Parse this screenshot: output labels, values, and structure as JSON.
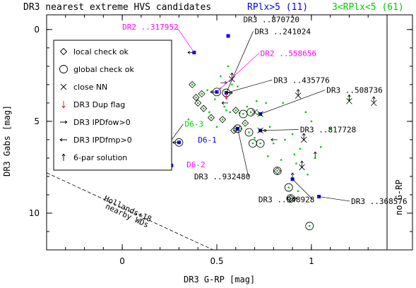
{
  "chart_data": {
    "type": "scatter",
    "title": "DR3 nearest extreme HVS candidates",
    "title_groups": [
      {
        "text": "RPlx>5 (11)",
        "color": "#0000ff"
      },
      {
        "text": "3<RPlx<5 (61)",
        "color": "#00cc00"
      }
    ],
    "xlabel": "DR3 G-RP [mag]",
    "ylabel": "DR3 Gabs [mag]",
    "xlim": [
      -0.4,
      1.4
    ],
    "ylim": [
      12,
      -0.8
    ],
    "y_inverted": true,
    "x_ticks": [
      "0",
      "0.5",
      "1"
    ],
    "y_ticks": [
      "0",
      "5",
      "10"
    ],
    "right_panel_label": "no G-RP",
    "guide_line": {
      "label_lines": [
        "Hollands+18",
        "nearby WDs"
      ],
      "points": [
        {
          "x": -0.4,
          "y": 7.8
        },
        {
          "x": 0.48,
          "y": 12.0
        }
      ]
    },
    "legend": {
      "position": "upper-left",
      "entries": [
        {
          "symbol": "diamond",
          "text": "local check ok",
          "color": "#000000"
        },
        {
          "symbol": "circle",
          "text": "global check ok",
          "color": "#000000"
        },
        {
          "symbol": "cross",
          "text": "close NN",
          "color": "#000000"
        },
        {
          "symbol": "arrow-down",
          "text": "DR3 Dup flag",
          "color": "#ff0000"
        },
        {
          "symbol": "arrow-right",
          "text": "DR3 IPDfow>0",
          "color": "#000000"
        },
        {
          "symbol": "arrow-left",
          "text": "DR3 IPDfmp>0",
          "color": "#000000"
        },
        {
          "symbol": "arrow-up",
          "text": "6-par solution",
          "color": "#000000"
        }
      ]
    },
    "series": [
      {
        "name": "RPlx>5 (11)",
        "color": "#0000ff",
        "points": [
          {
            "x": 0.38,
            "y": 1.25
          },
          {
            "x": 0.56,
            "y": 0.35
          },
          {
            "x": 0.55,
            "y": 3.45
          },
          {
            "x": 0.5,
            "y": 3.4
          },
          {
            "x": 0.73,
            "y": 4.6
          },
          {
            "x": 0.61,
            "y": 5.4
          },
          {
            "x": 0.73,
            "y": 5.5
          },
          {
            "x": 0.3,
            "y": 6.15
          },
          {
            "x": 0.26,
            "y": 7.4
          },
          {
            "x": 0.9,
            "y": 8.15
          },
          {
            "x": 1.04,
            "y": 9.1
          }
        ]
      },
      {
        "name": "3<RPlx<5 (61)",
        "color": "#00cc00",
        "points": [
          {
            "x": 0.24,
            "y": 6.3
          },
          {
            "x": 0.37,
            "y": 3.0
          },
          {
            "x": 0.39,
            "y": 3.7
          },
          {
            "x": 0.4,
            "y": 4.0
          },
          {
            "x": 0.42,
            "y": 3.5
          },
          {
            "x": 0.45,
            "y": 3.3
          },
          {
            "x": 0.43,
            "y": 4.3
          },
          {
            "x": 0.46,
            "y": 4.5
          },
          {
            "x": 0.47,
            "y": 4.8
          },
          {
            "x": 0.49,
            "y": 3.8
          },
          {
            "x": 0.5,
            "y": 5.3
          },
          {
            "x": 0.52,
            "y": 3.2
          },
          {
            "x": 0.52,
            "y": 2.55
          },
          {
            "x": 0.53,
            "y": 4.9
          },
          {
            "x": 0.54,
            "y": 4.2
          },
          {
            "x": 0.55,
            "y": 4.4
          },
          {
            "x": 0.56,
            "y": 2.0
          },
          {
            "x": 0.57,
            "y": 4.5
          },
          {
            "x": 0.58,
            "y": 3.0
          },
          {
            "x": 0.59,
            "y": 5.5
          },
          {
            "x": 0.6,
            "y": 4.4
          },
          {
            "x": 0.61,
            "y": 3.1
          },
          {
            "x": 0.62,
            "y": 4.55
          },
          {
            "x": 0.63,
            "y": 5.4
          },
          {
            "x": 0.64,
            "y": 4.6
          },
          {
            "x": 0.65,
            "y": 5.1
          },
          {
            "x": 0.66,
            "y": 4.2
          },
          {
            "x": 0.67,
            "y": 5.6
          },
          {
            "x": 0.68,
            "y": 4.5
          },
          {
            "x": 0.69,
            "y": 6.2
          },
          {
            "x": 0.7,
            "y": 5.9
          },
          {
            "x": 0.71,
            "y": 3.9
          },
          {
            "x": 0.72,
            "y": 4.6
          },
          {
            "x": 0.73,
            "y": 6.2
          },
          {
            "x": 0.75,
            "y": 5.5
          },
          {
            "x": 0.76,
            "y": 4.0
          },
          {
            "x": 0.77,
            "y": 6.9
          },
          {
            "x": 0.78,
            "y": 5.3
          },
          {
            "x": 0.8,
            "y": 6.2
          },
          {
            "x": 0.82,
            "y": 7.7
          },
          {
            "x": 0.84,
            "y": 7.1
          },
          {
            "x": 0.85,
            "y": 4.0
          },
          {
            "x": 0.86,
            "y": 6.0
          },
          {
            "x": 0.88,
            "y": 8.6
          },
          {
            "x": 0.89,
            "y": 9.2
          },
          {
            "x": 0.9,
            "y": 5.7
          },
          {
            "x": 0.91,
            "y": 6.8
          },
          {
            "x": 0.92,
            "y": 7.3
          },
          {
            "x": 0.93,
            "y": 8.8
          },
          {
            "x": 0.94,
            "y": 6.5
          },
          {
            "x": 0.95,
            "y": 7.5
          },
          {
            "x": 0.96,
            "y": 6.0
          },
          {
            "x": 0.97,
            "y": 4.5
          },
          {
            "x": 0.98,
            "y": 7.9
          },
          {
            "x": 0.99,
            "y": 10.7
          },
          {
            "x": 1.0,
            "y": 5.0
          },
          {
            "x": 1.02,
            "y": 7.0
          },
          {
            "x": 1.05,
            "y": 6.4
          },
          {
            "x": 1.1,
            "y": 5.4
          },
          {
            "x": 1.2,
            "y": 3.8
          },
          {
            "x": 0.35,
            "y": 4.9
          }
        ]
      }
    ],
    "markers": [
      {
        "symbol": "diamond",
        "x": 0.37,
        "y": 3.0
      },
      {
        "symbol": "diamond",
        "x": 0.39,
        "y": 3.7
      },
      {
        "symbol": "diamond",
        "x": 0.42,
        "y": 3.5
      },
      {
        "symbol": "diamond",
        "x": 0.4,
        "y": 4.0
      },
      {
        "symbol": "diamond",
        "x": 0.43,
        "y": 4.3
      },
      {
        "symbol": "diamond",
        "x": 0.47,
        "y": 4.8
      },
      {
        "symbol": "diamond",
        "x": 0.53,
        "y": 4.9
      },
      {
        "symbol": "diamond",
        "x": 0.59,
        "y": 5.5
      },
      {
        "symbol": "diamond",
        "x": 0.24,
        "y": 6.3
      },
      {
        "symbol": "diamond",
        "x": 0.82,
        "y": 7.7
      },
      {
        "symbol": "diamond",
        "x": 0.89,
        "y": 9.2
      },
      {
        "symbol": "diamond",
        "x": 0.65,
        "y": 5.1
      },
      {
        "symbol": "diamond",
        "x": 0.6,
        "y": 4.4
      },
      {
        "symbol": "circle",
        "x": 0.24,
        "y": 6.3
      },
      {
        "symbol": "circle",
        "x": 0.3,
        "y": 6.15
      },
      {
        "symbol": "circle",
        "x": 0.55,
        "y": 3.45
      },
      {
        "symbol": "circle",
        "x": 0.5,
        "y": 3.4
      },
      {
        "symbol": "circle",
        "x": 0.61,
        "y": 5.4
      },
      {
        "symbol": "circle",
        "x": 0.64,
        "y": 4.6
      },
      {
        "symbol": "circle",
        "x": 0.67,
        "y": 5.6
      },
      {
        "symbol": "circle",
        "x": 0.69,
        "y": 6.2
      },
      {
        "symbol": "circle",
        "x": 0.73,
        "y": 6.2
      },
      {
        "symbol": "circle",
        "x": 0.82,
        "y": 7.7
      },
      {
        "symbol": "circle",
        "x": 0.88,
        "y": 8.6
      },
      {
        "symbol": "circle",
        "x": 0.89,
        "y": 9.2
      },
      {
        "symbol": "circle",
        "x": 0.99,
        "y": 10.7
      },
      {
        "symbol": "circle",
        "x": 0.68,
        "y": 4.5
      },
      {
        "symbol": "cross",
        "x": 0.58,
        "y": 2.7
      },
      {
        "symbol": "cross",
        "x": 0.7,
        "y": 4.5
      },
      {
        "symbol": "cross",
        "x": 0.73,
        "y": 4.6
      },
      {
        "symbol": "cross",
        "x": 0.93,
        "y": 3.6
      },
      {
        "symbol": "cross",
        "x": 1.2,
        "y": 3.9
      },
      {
        "symbol": "cross",
        "x": 1.33,
        "y": 4.0
      },
      {
        "symbol": "cross",
        "x": 0.96,
        "y": 6.0
      },
      {
        "symbol": "cross",
        "x": 0.95,
        "y": 7.5
      },
      {
        "symbol": "cross",
        "x": 0.73,
        "y": 5.5
      },
      {
        "symbol": "cross",
        "x": 0.61,
        "y": 5.4
      },
      {
        "symbol": "arrow-left",
        "x": 0.38,
        "y": 1.25
      },
      {
        "symbol": "arrow-left",
        "x": 0.5,
        "y": 3.4
      },
      {
        "symbol": "arrow-left",
        "x": 0.56,
        "y": 4.0
      },
      {
        "symbol": "arrow-left",
        "x": 0.82,
        "y": 6.0
      },
      {
        "symbol": "arrow-left",
        "x": 0.3,
        "y": 6.15
      },
      {
        "symbol": "arrow-right",
        "x": 0.55,
        "y": 3.45
      },
      {
        "symbol": "arrow-right",
        "x": 0.52,
        "y": 2.9
      },
      {
        "symbol": "arrow-right",
        "x": 0.89,
        "y": 9.2
      },
      {
        "symbol": "arrow-right",
        "x": 0.73,
        "y": 5.5
      },
      {
        "symbol": "arrow-up",
        "x": 0.93,
        "y": 3.6
      },
      {
        "symbol": "arrow-up",
        "x": 1.2,
        "y": 3.9
      },
      {
        "symbol": "arrow-up",
        "x": 1.33,
        "y": 4.0
      },
      {
        "symbol": "arrow-up",
        "x": 0.96,
        "y": 6.0
      },
      {
        "symbol": "arrow-up",
        "x": 0.95,
        "y": 7.5
      },
      {
        "symbol": "arrow-up",
        "x": 1.02,
        "y": 7.0
      },
      {
        "symbol": "arrow-up",
        "x": 0.9,
        "y": 8.15
      },
      {
        "symbol": "arrow-up",
        "x": 0.58,
        "y": 2.7
      },
      {
        "symbol": "arrow-down",
        "x": 0.55,
        "y": 3.45
      }
    ],
    "annotations": [
      {
        "text": "DR2 ..317952",
        "color": "#ff00ff",
        "x": 0.38,
        "y": 1.25,
        "tx": 0.0,
        "ty": 0.0,
        "line": true
      },
      {
        "text": "DR3 ..870720",
        "color": "#000000",
        "x": 0.56,
        "y": 0.35,
        "tx": 0.64,
        "ty": -0.4,
        "line": false
      },
      {
        "text": "DR3 ..241024",
        "color": "#000000",
        "x": 0.55,
        "y": 3.45,
        "tx": 0.7,
        "ty": 0.25,
        "line": true
      },
      {
        "text": "DR2 ..558656",
        "color": "#ff00ff",
        "x": 0.5,
        "y": 3.4,
        "tx": 0.73,
        "ty": 1.45,
        "line": true
      },
      {
        "text": "DR3 ..435776",
        "color": "#000000",
        "x": 0.55,
        "y": 3.45,
        "tx": 0.8,
        "ty": 2.9,
        "line": true
      },
      {
        "text": "DR3 ..508736",
        "color": "#000000",
        "x": 0.73,
        "y": 4.6,
        "tx": 1.08,
        "ty": 3.45,
        "line": true
      },
      {
        "text": "DR3 ..817728",
        "color": "#000000",
        "x": 0.73,
        "y": 5.5,
        "tx": 0.94,
        "ty": 5.6,
        "line": true
      },
      {
        "text": "D6-3",
        "color": "#00cc00",
        "x": 0.24,
        "y": 6.3,
        "tx": 0.33,
        "ty": 5.3,
        "line": true
      },
      {
        "text": "D6-1",
        "color": "#0000ff",
        "x": 0.3,
        "y": 6.15,
        "tx": 0.4,
        "ty": 6.15,
        "line": false
      },
      {
        "text": "D",
        "color": "#000000",
        "x": 0.26,
        "y": 7.4,
        "tx": 0.23,
        "ty": 7.55,
        "line": false
      },
      {
        "text": "D6-2",
        "color": "#ff00ff",
        "x": 0.26,
        "y": 7.4,
        "tx": 0.34,
        "ty": 7.5,
        "line": false
      },
      {
        "text": "DR3 ..932480",
        "color": "#000000",
        "x": 0.61,
        "y": 5.4,
        "tx": 0.38,
        "ty": 8.15,
        "line": true
      },
      {
        "text": "DR3 ..948928",
        "color": "#000000",
        "x": 0.9,
        "y": 8.15,
        "tx": 0.72,
        "ty": 9.4,
        "line": true
      },
      {
        "text": "DR3 ..368576",
        "color": "#000000",
        "x": 1.04,
        "y": 9.1,
        "tx": 1.21,
        "ty": 9.5,
        "line": true
      }
    ]
  }
}
